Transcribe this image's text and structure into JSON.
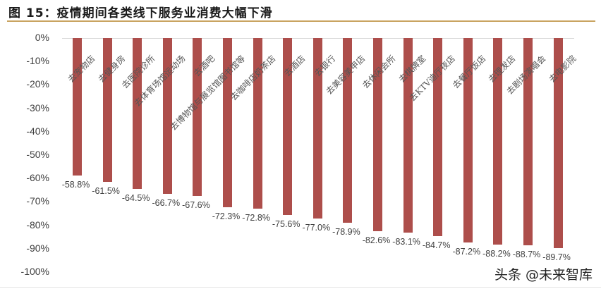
{
  "title": "图 15：疫情期间各类线下服务业消费大幅下滑",
  "watermark": "头条 @未来智库",
  "colors": {
    "bar": "#ad4e4b",
    "title_rule": "#c9a461",
    "axis_line": "#d9d9d9"
  },
  "y_axis": {
    "ticks": [
      "0%",
      "-10%",
      "-20%",
      "-30%",
      "-40%",
      "-50%",
      "-60%",
      "-70%",
      "-80%",
      "-90%",
      "-100%"
    ]
  },
  "chart_data": {
    "type": "bar",
    "title": "图 15：疫情期间各类线下服务业消费大幅下滑",
    "xlabel": "",
    "ylabel": "",
    "ylim": [
      -100,
      0
    ],
    "grid": false,
    "legend": null,
    "categories": [
      "去宠物店",
      "去健身房",
      "去医院诊所",
      "去体育场馆运动场",
      "去酒吧",
      "去博物馆与展览馆图书馆等",
      "去咖啡店奶茶店",
      "去酒店",
      "去银行",
      "去美容美甲店",
      "去休闲会所",
      "去棋牌室",
      "去KTV迪厅夜店",
      "去餐厅饭店",
      "去理发店",
      "去剧场演唱会",
      "去电影院"
    ],
    "values": [
      -58.8,
      -61.5,
      -64.5,
      -66.7,
      -67.6,
      -72.3,
      -72.8,
      -75.6,
      -77.0,
      -78.9,
      -82.6,
      -83.1,
      -84.7,
      -87.2,
      -88.2,
      -88.7,
      -89.7
    ],
    "value_labels": [
      "-58.8%",
      "-61.5%",
      "-64.5%",
      "-66.7%",
      "-67.6%",
      "-72.3%",
      "-72.8%",
      "-75.6%",
      "-77.0%",
      "-78.9%",
      "-82.6%",
      "-83.1%",
      "-84.7%",
      "-87.2%",
      "-88.2%",
      "-88.7%",
      "-89.7%"
    ]
  }
}
